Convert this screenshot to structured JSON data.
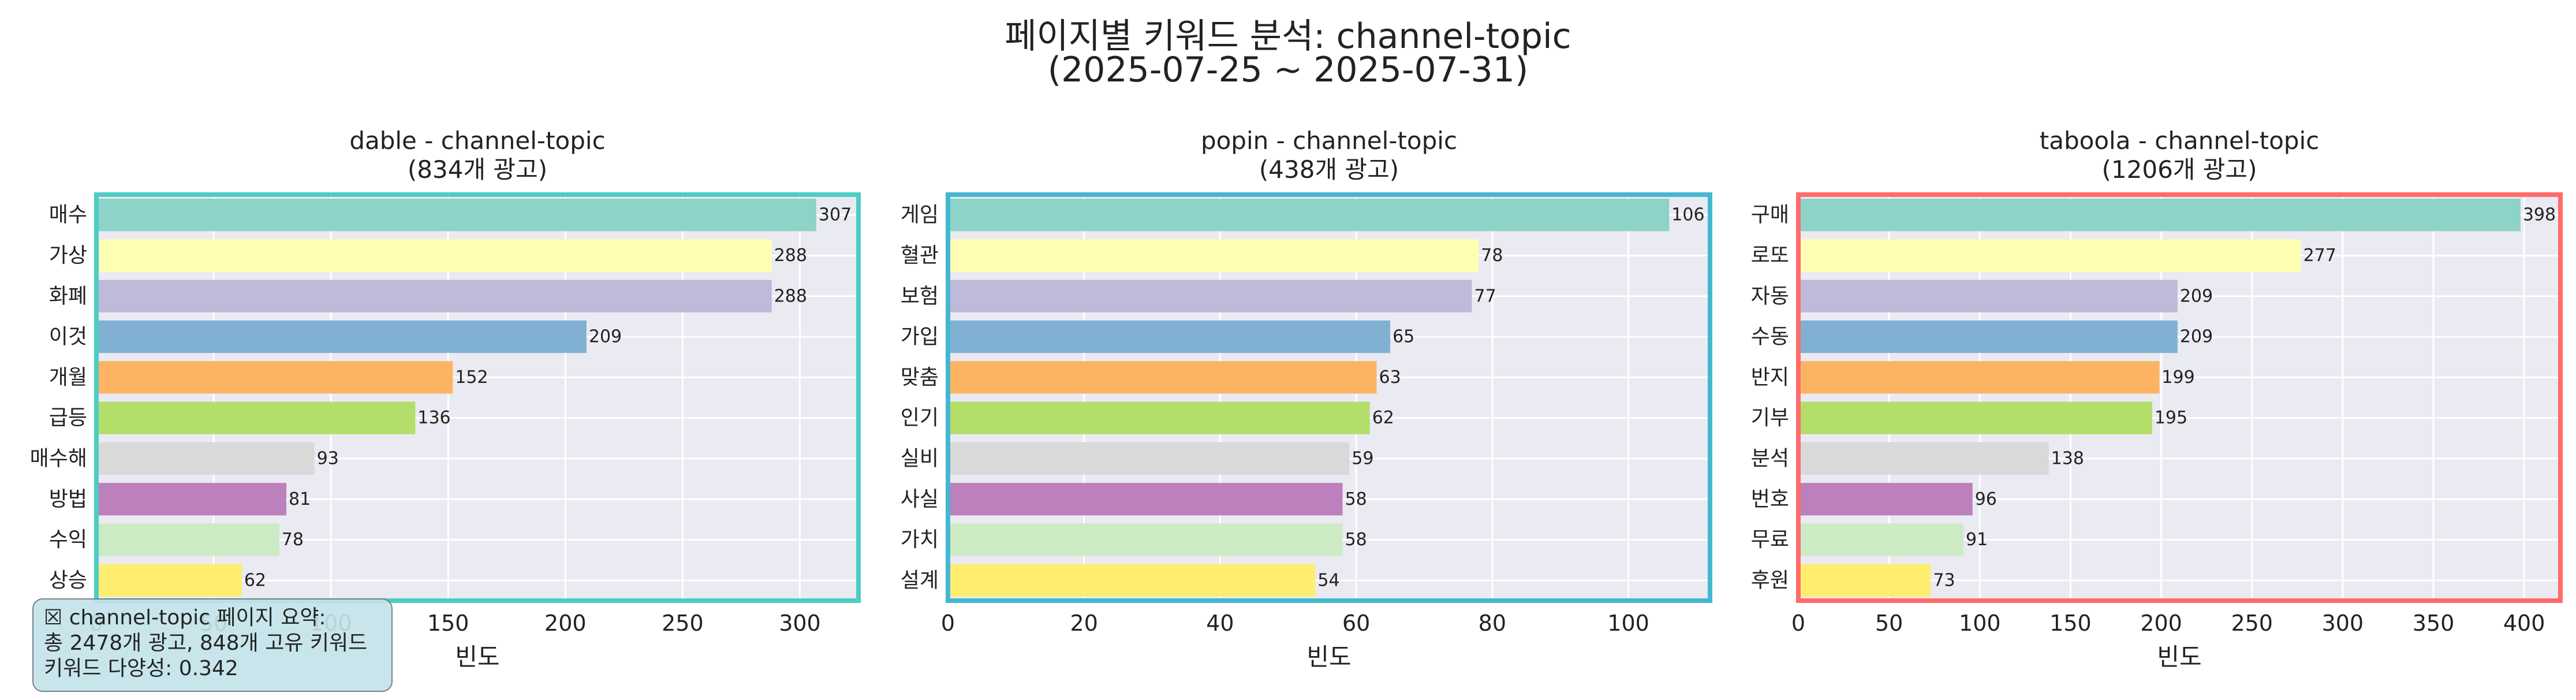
{
  "page": {
    "title": "페이지별 키워드 분석: channel-topic",
    "subtitle": "(2025-07-25 ~ 2025-07-31)"
  },
  "summary": {
    "line1": "☒ channel-topic 페이지 요약:",
    "line2": "총 2478개 광고, 848개 고유 키워드",
    "line3": "키워드 다양성: 0.342"
  },
  "bar_colors": [
    "#8dd3c7",
    "#ffffb3",
    "#bebada",
    "#80b1d3",
    "#fdb462",
    "#b3de69",
    "#d9d9d9",
    "#bc80bd",
    "#ccebc5",
    "#ffed6f"
  ],
  "chart_data": [
    {
      "type": "bar",
      "orientation": "horizontal",
      "title": "dable - channel-topic\n(834개 광고)",
      "xlabel": "빈도",
      "frame_color": "#4ecdc4",
      "xlim": [
        0,
        325
      ],
      "xticks": [
        0,
        50,
        100,
        150,
        200,
        250,
        300
      ],
      "grid": true,
      "categories": [
        "매수",
        "가상",
        "화폐",
        "이것",
        "개월",
        "급등",
        "매수해",
        "방법",
        "수익",
        "상승"
      ],
      "values": [
        307,
        288,
        288,
        209,
        152,
        136,
        93,
        81,
        78,
        62
      ]
    },
    {
      "type": "bar",
      "orientation": "horizontal",
      "title": "popin - channel-topic\n(438개 광고)",
      "xlabel": "빈도",
      "frame_color": "#45b7d1",
      "xlim": [
        0,
        112
      ],
      "xticks": [
        0,
        20,
        40,
        60,
        80,
        100
      ],
      "grid": true,
      "categories": [
        "게임",
        "혈관",
        "보험",
        "가입",
        "맞춤",
        "인기",
        "실비",
        "사실",
        "가치",
        "설계"
      ],
      "values": [
        106,
        78,
        77,
        65,
        63,
        62,
        59,
        58,
        58,
        54
      ]
    },
    {
      "type": "bar",
      "orientation": "horizontal",
      "title": "taboola - channel-topic\n(1206개 광고)",
      "xlabel": "빈도",
      "frame_color": "#ff6b6b",
      "xlim": [
        0,
        420
      ],
      "xticks": [
        0,
        50,
        100,
        150,
        200,
        250,
        300,
        350,
        400
      ],
      "grid": true,
      "categories": [
        "구매",
        "로또",
        "자동",
        "수동",
        "반지",
        "기부",
        "분석",
        "번호",
        "무료",
        "후원"
      ],
      "values": [
        398,
        277,
        209,
        209,
        199,
        195,
        138,
        96,
        91,
        73
      ]
    }
  ]
}
